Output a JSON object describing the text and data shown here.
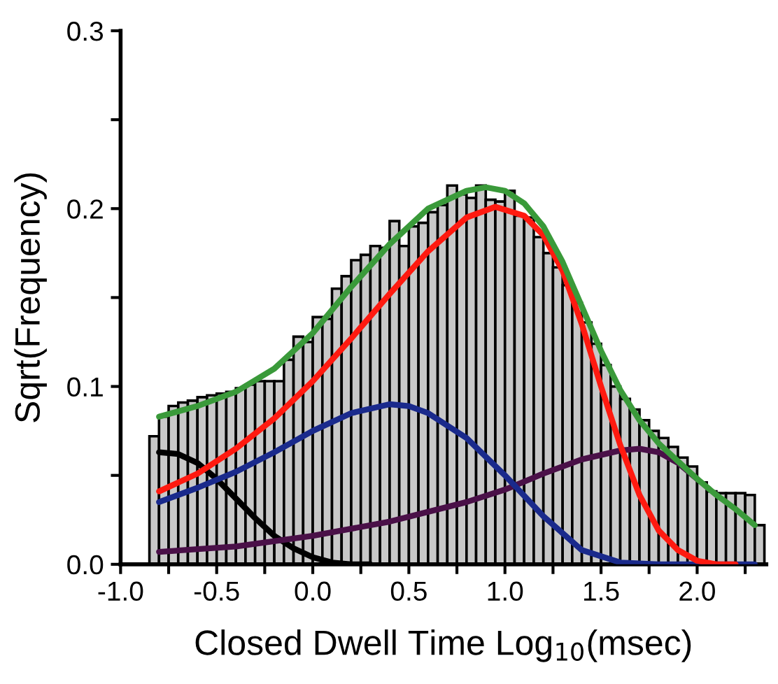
{
  "chart_data": {
    "type": "histogram",
    "xlabel": "Closed Dwell Time Log$_{10}$(msec)",
    "ylabel": "Sqrt(Frequency)",
    "bins": [
      -0.85,
      -0.8,
      -0.75,
      -0.7,
      -0.65,
      -0.6,
      -0.55,
      -0.5,
      -0.45,
      -0.4,
      -0.35,
      -0.3,
      -0.25,
      -0.2,
      -0.15,
      -0.1,
      -0.05,
      0.0,
      0.05,
      0.1,
      0.15,
      0.2,
      0.25,
      0.3,
      0.35,
      0.4,
      0.45,
      0.5,
      0.55,
      0.6,
      0.65,
      0.7,
      0.75,
      0.8,
      0.85,
      0.9,
      0.95,
      1.0,
      1.05,
      1.1,
      1.15,
      1.2,
      1.25,
      1.3,
      1.35,
      1.4,
      1.45,
      1.5,
      1.55,
      1.6,
      1.65,
      1.7,
      1.75,
      1.8,
      1.85,
      1.9,
      1.95,
      2.0,
      2.05,
      2.1,
      2.15,
      2.2,
      2.25,
      2.3,
      2.35
    ],
    "values": [
      0.072,
      0.083,
      0.089,
      0.091,
      0.092,
      0.094,
      0.095,
      0.096,
      0.097,
      0.099,
      0.101,
      0.103,
      0.103,
      0.103,
      0.115,
      0.128,
      0.125,
      0.139,
      0.138,
      0.155,
      0.162,
      0.171,
      0.174,
      0.179,
      0.178,
      0.193,
      0.179,
      0.19,
      0.192,
      0.198,
      0.202,
      0.213,
      0.208,
      0.206,
      0.213,
      0.205,
      0.204,
      0.21,
      0.196,
      0.195,
      0.184,
      0.175,
      0.167,
      0.157,
      0.147,
      0.136,
      0.124,
      0.112,
      0.1,
      0.093,
      0.087,
      0.081,
      0.075,
      0.071,
      0.066,
      0.06,
      0.055,
      0.046,
      0.041,
      0.04,
      0.04,
      0.04,
      0.039,
      0.022
    ],
    "color": "#c8c8c8",
    "series": [
      {
        "type": "line",
        "color": "#000000",
        "x": [
          -0.8,
          -0.7,
          -0.6,
          -0.5,
          -0.4,
          -0.3,
          -0.2,
          -0.1,
          0.0,
          0.1,
          0.2,
          0.3
        ],
        "values": [
          0.063,
          0.062,
          0.057,
          0.048,
          0.037,
          0.026,
          0.016,
          0.009,
          0.004,
          0.001,
          0.0,
          0.0
        ]
      },
      {
        "type": "line",
        "color": "#4a1048",
        "x": [
          -0.8,
          -0.4,
          0.0,
          0.4,
          0.8,
          1.0,
          1.2,
          1.4,
          1.6,
          1.7,
          1.8,
          1.9,
          2.0
        ],
        "values": [
          0.007,
          0.01,
          0.016,
          0.024,
          0.035,
          0.042,
          0.051,
          0.059,
          0.064,
          0.065,
          0.063,
          0.057,
          0.048
        ]
      },
      {
        "type": "line",
        "color": "#1a2a8c",
        "x": [
          -0.8,
          -0.6,
          -0.4,
          -0.2,
          0.0,
          0.2,
          0.4,
          0.5,
          0.6,
          0.8,
          1.0,
          1.2,
          1.4,
          1.6,
          1.8,
          2.0,
          2.3
        ],
        "values": [
          0.035,
          0.043,
          0.052,
          0.063,
          0.075,
          0.085,
          0.09,
          0.089,
          0.085,
          0.071,
          0.05,
          0.027,
          0.008,
          0.001,
          0.0,
          0.0,
          0.0
        ]
      },
      {
        "type": "line",
        "color": "#ff1a10",
        "x": [
          -0.8,
          -0.6,
          -0.4,
          -0.2,
          0.0,
          0.2,
          0.4,
          0.6,
          0.8,
          0.95,
          1.1,
          1.2,
          1.3,
          1.4,
          1.5,
          1.6,
          1.7,
          1.8,
          1.9,
          2.0,
          2.1,
          2.2
        ],
        "values": [
          0.041,
          0.051,
          0.065,
          0.082,
          0.103,
          0.127,
          0.152,
          0.176,
          0.195,
          0.201,
          0.196,
          0.185,
          0.165,
          0.135,
          0.1,
          0.067,
          0.039,
          0.019,
          0.008,
          0.002,
          0.0,
          0.0
        ]
      },
      {
        "type": "line",
        "color": "#3a9a3a",
        "x": [
          -0.8,
          -0.6,
          -0.4,
          -0.2,
          0.0,
          0.2,
          0.4,
          0.6,
          0.8,
          0.9,
          1.0,
          1.1,
          1.2,
          1.3,
          1.4,
          1.5,
          1.6,
          1.7,
          1.8,
          1.9,
          2.0,
          2.1,
          2.2,
          2.3
        ],
        "values": [
          0.083,
          0.089,
          0.097,
          0.11,
          0.13,
          0.156,
          0.18,
          0.2,
          0.21,
          0.212,
          0.21,
          0.203,
          0.19,
          0.17,
          0.145,
          0.12,
          0.098,
          0.081,
          0.068,
          0.058,
          0.048,
          0.039,
          0.031,
          0.022
        ]
      }
    ],
    "xlim": [
      -1.0,
      2.36
    ],
    "ylim": [
      0,
      0.3
    ],
    "xticks": [
      {
        "value": -1.0,
        "label": "-1.0"
      },
      {
        "value": -0.75,
        "label": null
      },
      {
        "value": -0.5,
        "label": "-0.5"
      },
      {
        "value": -0.25,
        "label": null
      },
      {
        "value": 0.0,
        "label": "0.0"
      },
      {
        "value": 0.25,
        "label": null
      },
      {
        "value": 0.5,
        "label": "0.5"
      },
      {
        "value": 0.75,
        "label": null
      },
      {
        "value": 1.0,
        "label": "1.0"
      },
      {
        "value": 1.25,
        "label": null
      },
      {
        "value": 1.5,
        "label": "1.5"
      },
      {
        "value": 1.75,
        "label": null
      },
      {
        "value": 2.0,
        "label": "2.0"
      },
      {
        "value": 2.25,
        "label": null
      }
    ],
    "yticks": [
      {
        "value": 0.0,
        "label": "0.0"
      },
      {
        "value": 0.05,
        "label": null
      },
      {
        "value": 0.1,
        "label": "0.1"
      },
      {
        "value": 0.15,
        "label": null
      },
      {
        "value": 0.2,
        "label": "0.2"
      },
      {
        "value": 0.25,
        "label": null
      },
      {
        "value": 0.3,
        "label": "0.3"
      }
    ],
    "grid": false,
    "legend": false
  }
}
